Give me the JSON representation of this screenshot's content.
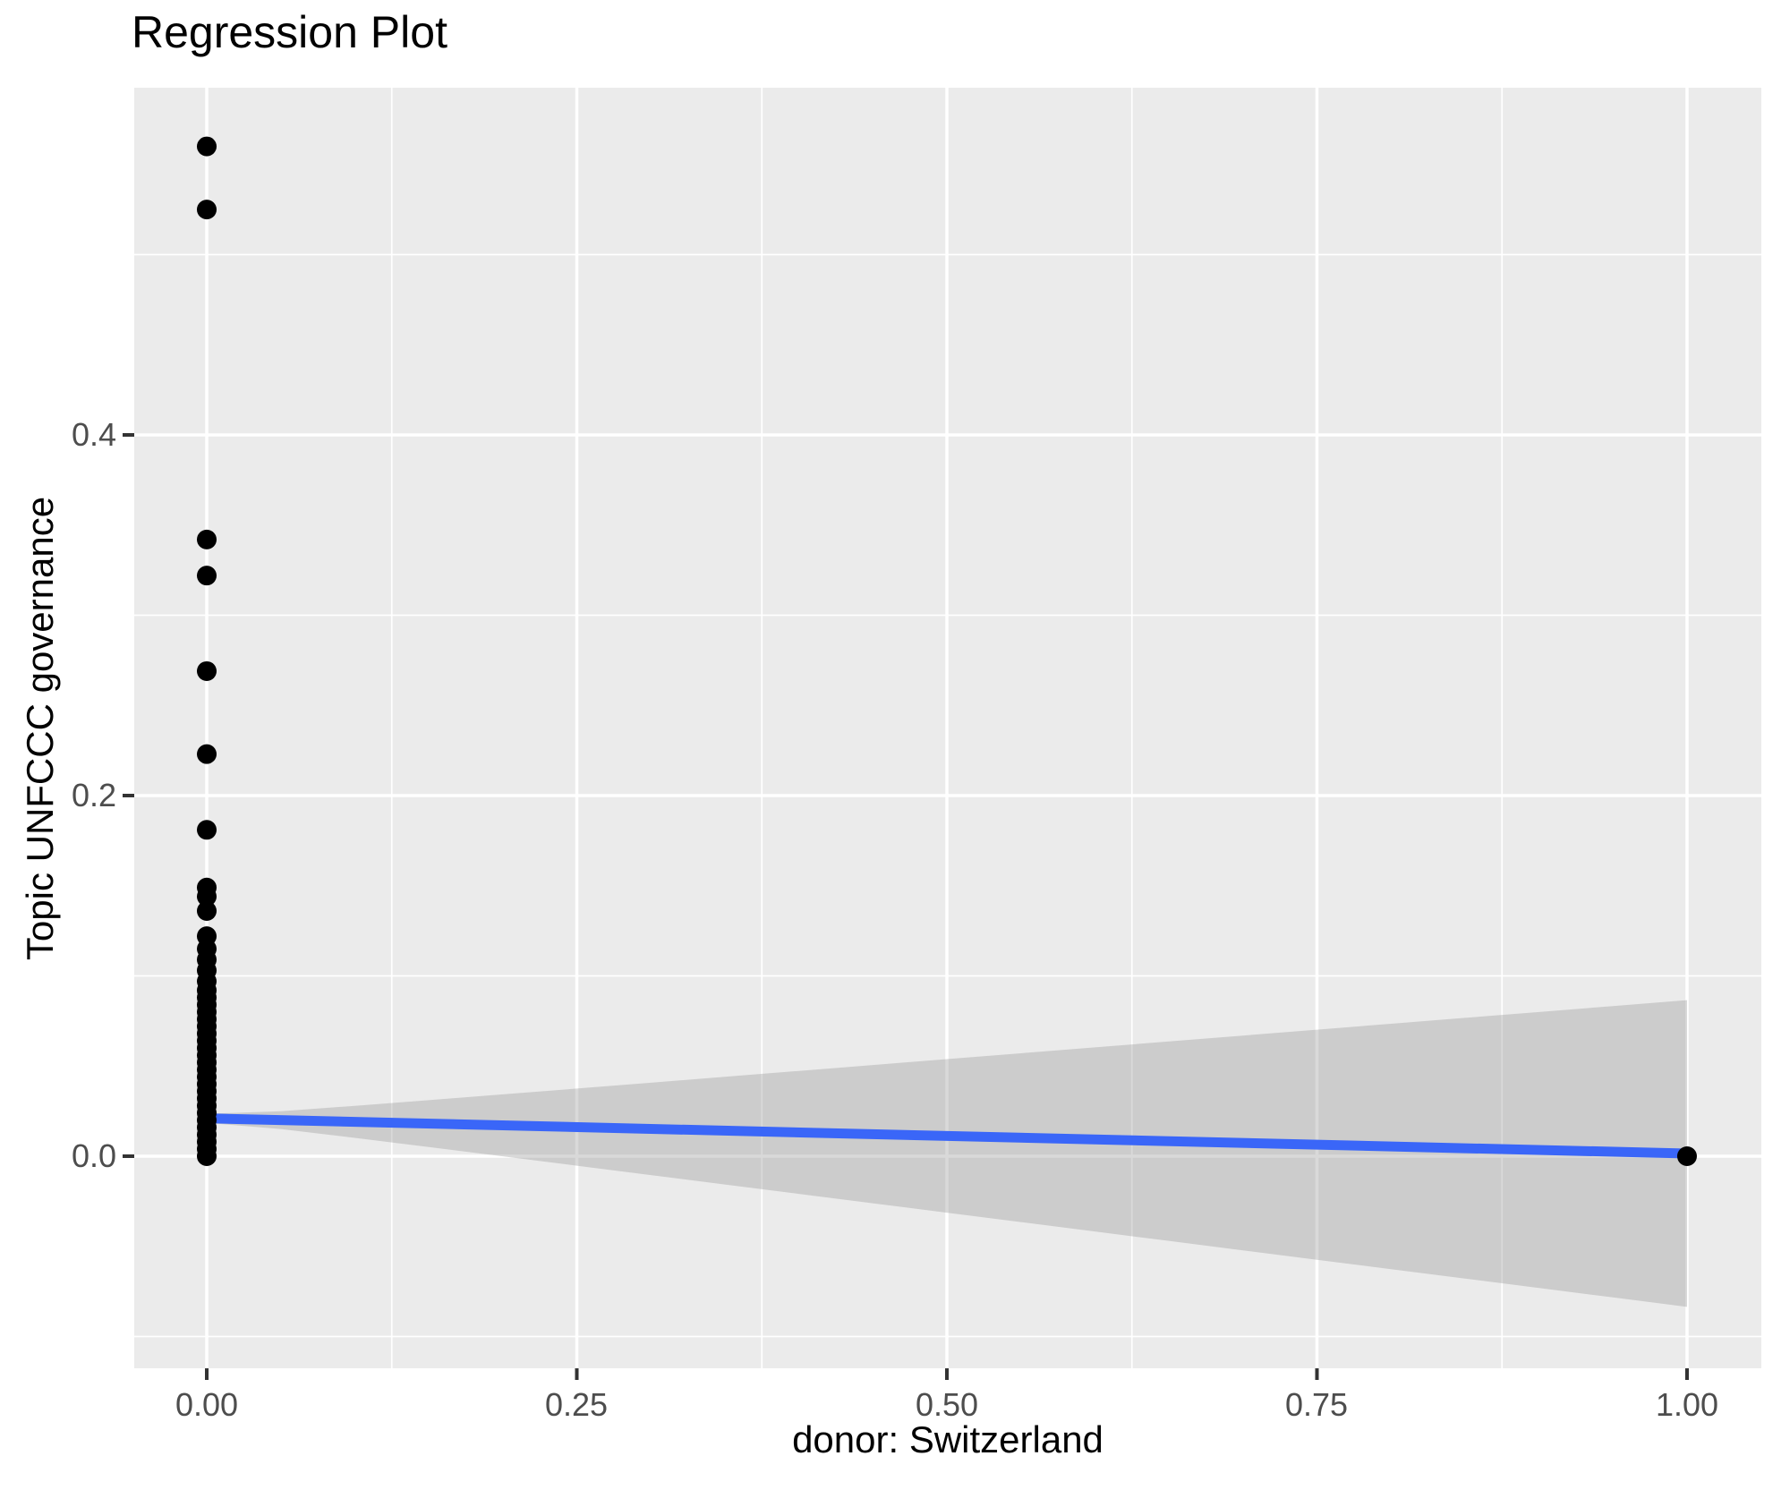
{
  "chart_data": {
    "type": "scatter",
    "title": "Regression Plot",
    "xlabel": "donor: Switzerland",
    "ylabel": "Topic UNFCCC governance",
    "x_ticks": {
      "values": [
        0,
        0.25,
        0.5,
        0.75,
        1.0
      ],
      "labels": [
        "0.00",
        "0.25",
        "0.50",
        "0.75",
        "1.00"
      ],
      "minor_values": [
        0.125,
        0.375,
        0.625,
        0.875
      ]
    },
    "y_ticks": {
      "values": [
        0.0,
        0.2,
        0.4
      ],
      "labels": [
        "0.0",
        "0.2",
        "0.4"
      ],
      "minor_values": [
        -0.1,
        0.1,
        0.3,
        0.5
      ]
    },
    "xlim": [
      -0.049,
      1.05
    ],
    "ylim": [
      -0.118,
      0.592
    ],
    "grid": "on",
    "legend": "none",
    "points_x0": [
      0.56,
      0.525,
      0.342,
      0.322,
      0.269,
      0.223,
      0.181,
      0.149,
      0.144,
      0.136,
      0.122,
      0.115,
      0.109,
      0.103,
      0.097,
      0.092,
      0.088,
      0.084,
      0.08,
      0.076,
      0.072,
      0.068,
      0.064,
      0.06,
      0.056,
      0.052,
      0.048,
      0.044,
      0.04,
      0.036,
      0.032,
      0.028,
      0.024,
      0.02,
      0.016,
      0.012,
      0.008,
      0.004,
      0.0
    ],
    "points_x1": [
      0.0
    ],
    "regression_line": {
      "x": [
        0,
        1
      ],
      "y": [
        0.021,
        0.0015
      ]
    },
    "confidence_band": {
      "halfwidth_at_x0": 0.0025,
      "halfwidth_at_x1": 0.085
    },
    "colors": {
      "panel": "#EBEBEB",
      "grid": "#FFFFFF",
      "point": "#000000",
      "line": "#3A66F8",
      "ribbon": "#999999",
      "ribbon_opacity": 0.37,
      "tick_mark": "#333333",
      "tick_text": "#4D4D4D",
      "axis_title_text": "#000000"
    }
  }
}
